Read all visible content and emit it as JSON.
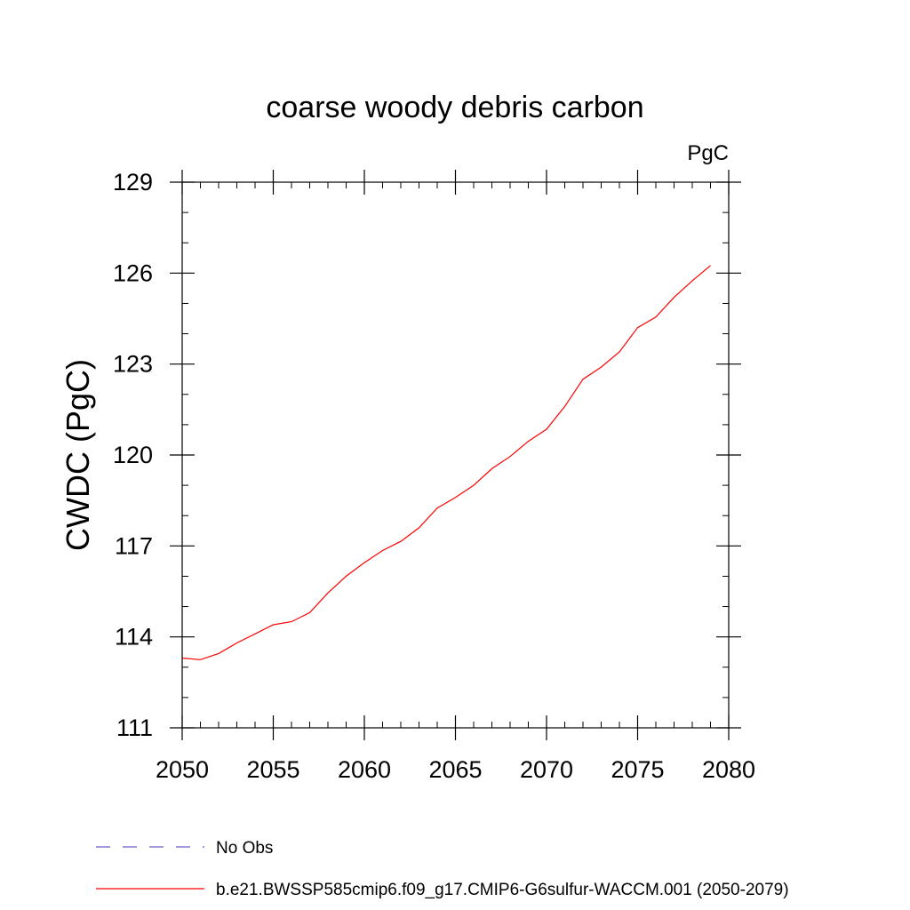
{
  "chart_data": {
    "type": "line",
    "title": "coarse woody debris carbon",
    "units_label": "PgC",
    "ylabel": "CWDC  (PgC)",
    "xlabel": "",
    "xlim": [
      2050,
      2080
    ],
    "ylim": [
      111,
      129
    ],
    "x_ticks": [
      2050,
      2055,
      2060,
      2065,
      2070,
      2075,
      2080
    ],
    "y_ticks": [
      111,
      114,
      117,
      120,
      123,
      126,
      129
    ],
    "x_minor_step": 1,
    "y_minor_step": 1,
    "grid": false,
    "legend_position": "bottom",
    "series": [
      {
        "name": "b.e21.BWSSP585cmip6.f09_g17.CMIP6-G6sulfur-WACCM.001 (2050-2079)",
        "color": "#ff0000",
        "dash": "solid",
        "x": [
          2050,
          2051,
          2052,
          2053,
          2054,
          2055,
          2056,
          2057,
          2058,
          2059,
          2060,
          2061,
          2062,
          2063,
          2064,
          2065,
          2066,
          2067,
          2068,
          2069,
          2070,
          2071,
          2072,
          2073,
          2074,
          2075,
          2076,
          2077,
          2078,
          2079
        ],
        "y": [
          113.3,
          113.25,
          113.45,
          113.8,
          114.1,
          114.4,
          114.5,
          114.8,
          115.45,
          116.0,
          116.45,
          116.85,
          117.15,
          117.6,
          118.25,
          118.6,
          119.0,
          119.55,
          119.95,
          120.45,
          120.85,
          121.6,
          122.5,
          122.9,
          123.4,
          124.2,
          124.55,
          125.2,
          125.75,
          126.25
        ]
      }
    ],
    "legend": [
      {
        "label": "No Obs",
        "color": "#6a5acd",
        "dash": "dashed"
      },
      {
        "label": "b.e21.BWSSP585cmip6.f09_g17.CMIP6-G6sulfur-WACCM.001 (2050-2079)",
        "color": "#ff0000",
        "dash": "solid"
      }
    ]
  }
}
